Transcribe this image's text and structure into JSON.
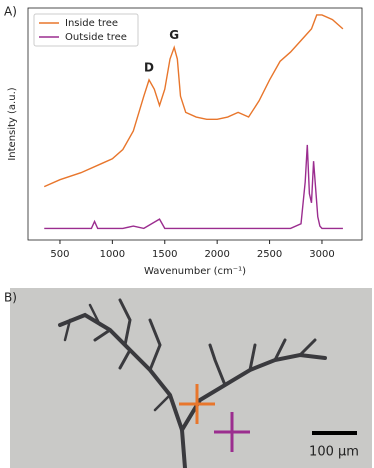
{
  "chart_data": {
    "type": "line",
    "panel_label": "A)",
    "xlabel": "Wavenumber (cm⁻¹)",
    "ylabel": "Intensity (a.u.)",
    "xlim": [
      195,
      3382
    ],
    "ylim": [
      0,
      100
    ],
    "xticks": [
      500,
      1000,
      1500,
      2000,
      2500,
      3000
    ],
    "legend": "upper left",
    "annotations": [
      {
        "text": "D",
        "x": 1350
      },
      {
        "text": "G",
        "x": 1590
      }
    ],
    "series": [
      {
        "name": "Inside tree",
        "color": "#e8762c",
        "x": [
          350,
          500,
          700,
          900,
          1000,
          1100,
          1200,
          1300,
          1350,
          1400,
          1450,
          1500,
          1550,
          1590,
          1620,
          1650,
          1700,
          1800,
          1900,
          2000,
          2100,
          2200,
          2300,
          2400,
          2500,
          2600,
          2700,
          2800,
          2900,
          2950,
          3000,
          3100,
          3200
        ],
        "values": [
          23,
          26,
          29,
          33,
          35,
          39,
          47,
          62,
          69,
          65,
          58,
          65,
          78,
          83,
          78,
          62,
          55,
          53,
          52,
          52,
          53,
          55,
          53,
          60,
          69,
          77,
          81,
          86,
          91,
          97,
          97,
          95,
          91
        ]
      },
      {
        "name": "Outside tree",
        "color": "#9b2d8f",
        "x": [
          350,
          500,
          800,
          830,
          860,
          1100,
          1200,
          1300,
          1450,
          1500,
          2000,
          2500,
          2700,
          2800,
          2840,
          2860,
          2880,
          2900,
          2920,
          2940,
          2960,
          2980,
          3000,
          3200
        ],
        "values": [
          5,
          5,
          5,
          8,
          5,
          5,
          6,
          5,
          9,
          5,
          5,
          5,
          5,
          7,
          25,
          41,
          20,
          16,
          34,
          22,
          10,
          6,
          5,
          5
        ]
      }
    ]
  },
  "panel_b": {
    "label": "B)",
    "scale_bar": "100 µm"
  }
}
